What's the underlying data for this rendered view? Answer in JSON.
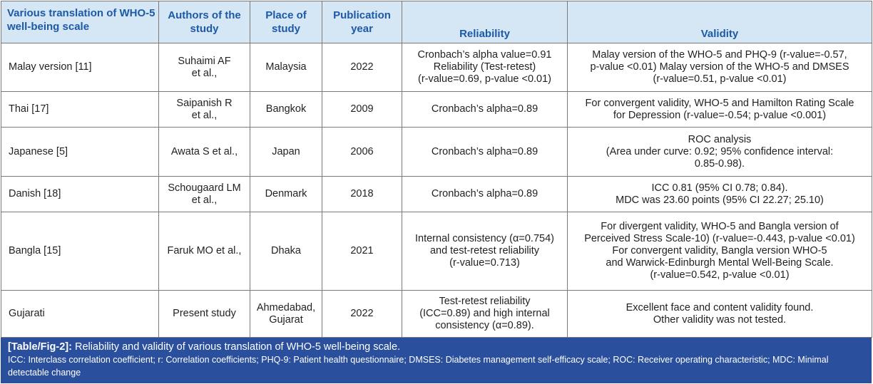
{
  "table": {
    "headers": [
      "Various translation of WHO-5 well-being scale",
      "Authors of the study",
      "Place of study",
      "Publication year",
      "Reliability",
      "Validity"
    ],
    "rows": [
      {
        "translation": "Malay version [11]",
        "authors": [
          "Suhaimi AF",
          "et al.,"
        ],
        "place": [
          "Malaysia"
        ],
        "year": "2022",
        "reliability": [
          "Cronbach’s alpha value=0.91",
          "Reliability (Test-retest)",
          "(r-value=0.69, p-value <0.01)"
        ],
        "validity": [
          "Malay version of the WHO-5 and PHQ-9 (r-value=-0.57,",
          "p-value <0.01) Malay version of the WHO-5 and DMSES",
          "(r-value=0.51, p-value <0.01)"
        ]
      },
      {
        "translation": "Thai [17]",
        "authors": [
          "Saipanish R",
          "et al.,"
        ],
        "place": [
          "Bangkok"
        ],
        "year": "2009",
        "reliability": [
          "Cronbach’s alpha=0.89"
        ],
        "validity": [
          "For convergent validity, WHO-5 and Hamilton Rating Scale",
          "for Depression (r-value=-0.54; p-value <0.001)"
        ]
      },
      {
        "translation": "Japanese [5]",
        "authors": [
          "Awata S et al.,"
        ],
        "place": [
          "Japan"
        ],
        "year": "2006",
        "reliability": [
          "Cronbach’s alpha=0.89"
        ],
        "validity": [
          "ROC analysis",
          "(Area under curve: 0.92; 95% confidence interval:",
          "0.85-0.98)."
        ]
      },
      {
        "translation": "Danish [18]",
        "authors": [
          "Schougaard LM",
          "et al.,"
        ],
        "place": [
          "Denmark"
        ],
        "year": "2018",
        "reliability": [
          "Cronbach’s alpha=0.89"
        ],
        "validity": [
          "ICC 0.81 (95% CI 0.78; 0.84).",
          "MDC was 23.60 points (95% CI 22.27; 25.10)"
        ]
      },
      {
        "translation": "Bangla [15]",
        "authors": [
          "Faruk MO et al.,"
        ],
        "place": [
          "Dhaka"
        ],
        "year": "2021",
        "reliability": [
          "Internal consistency (α=0.754)",
          "and test-retest reliability",
          "(r-value=0.713)"
        ],
        "validity": [
          "For divergent validity, WHO-5 and Bangla version of",
          "Perceived Stress Scale-10) (r-value=-0.443, p-value <0.01)",
          "For convergent validity, Bangla version WHO-5",
          "and Warwick-Edinburgh Mental Well-Being Scale.",
          "(r-value=0.542, p-value <0.01)"
        ]
      },
      {
        "translation": "Gujarati",
        "authors": [
          "Present study"
        ],
        "place": [
          "Ahmedabad,",
          "Gujarat"
        ],
        "year": "2022",
        "reliability": [
          "Test-retest reliability",
          "(ICC=0.89) and high internal",
          "consistency (α=0.89)."
        ],
        "validity": [
          "Excellent face and content validity found.",
          "Other validity was not tested."
        ]
      }
    ]
  },
  "caption": {
    "label": "[Table/Fig-2]:",
    "title": "Reliability and validity of various translation of WHO-5 well-being scale.",
    "note": "ICC: Interclass correlation coefficient; r: Correlation coefficients; PHQ-9: Patient health questionnaire; DMSES: Diabetes management self-efficacy scale; ROC: Receiver operating characteristic; MDC: Minimal detectable change"
  }
}
